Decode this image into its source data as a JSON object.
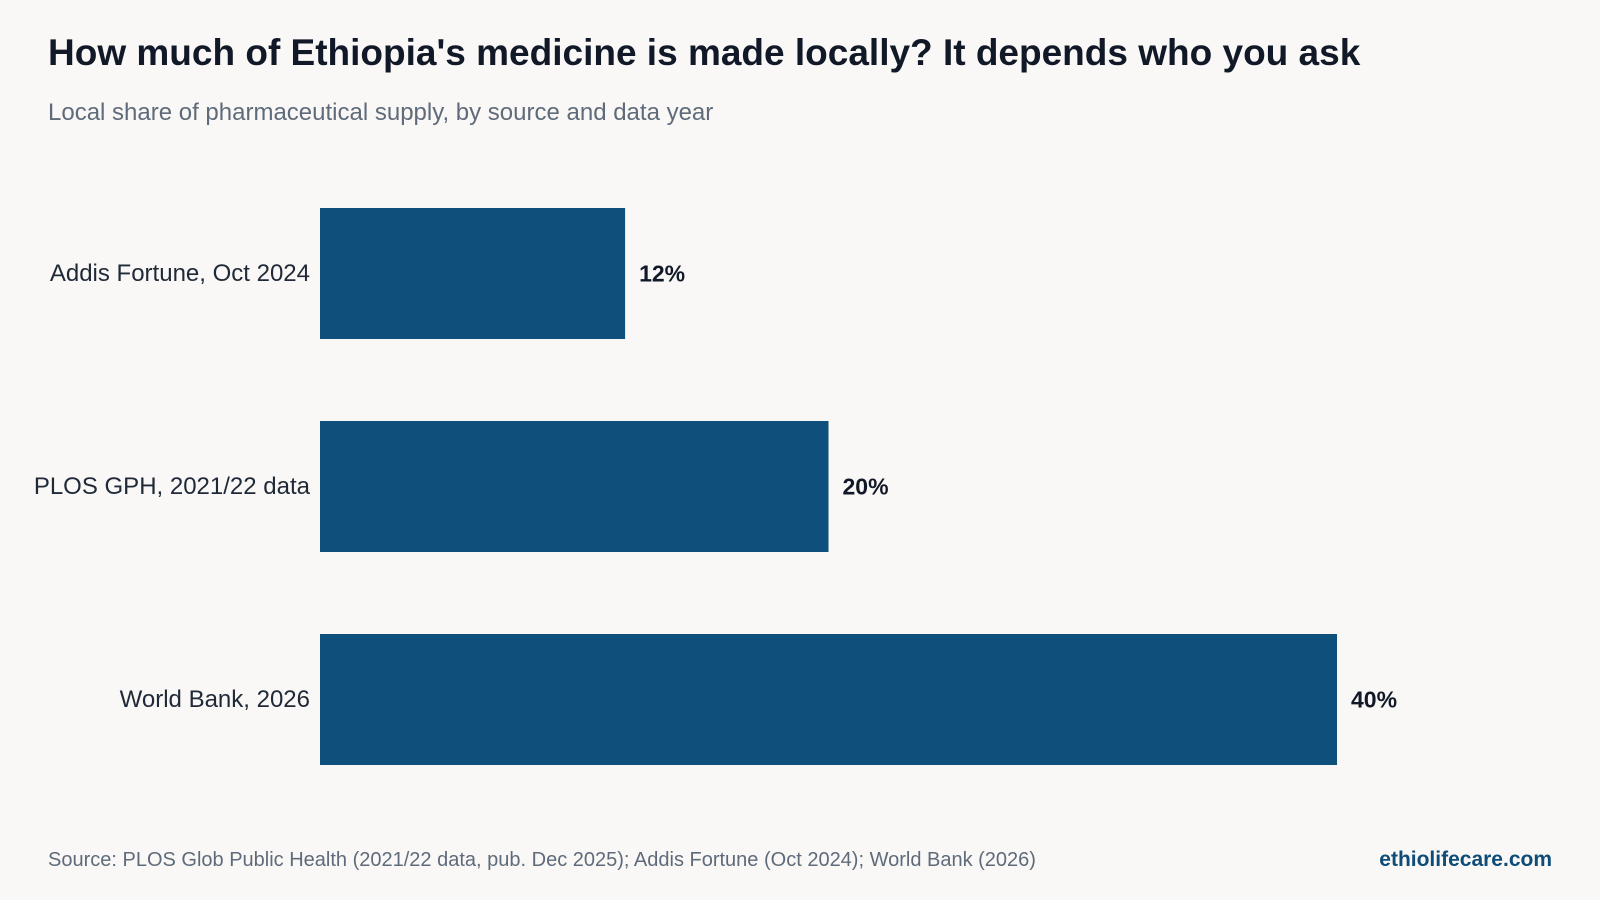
{
  "header": {
    "title": "How much of Ethiopia's medicine is made locally? It depends who you ask",
    "subtitle": "Local share of pharmaceutical supply, by source and data year"
  },
  "footer": {
    "source": "Source: PLOS Glob Public Health (2021/22 data, pub. Dec 2025); Addis Fortune (Oct 2024); World Bank (2026)",
    "brand": "ethiolifecare.com"
  },
  "colors": {
    "bar": "#0f4f7b",
    "label": "#1f2937",
    "value": "#111827",
    "brand": "#0f4c78"
  },
  "chart_data": {
    "type": "bar",
    "orientation": "horizontal",
    "categories": [
      "Addis Fortune, Oct 2024",
      "PLOS GPH, 2021/22 data",
      "World Bank, 2026"
    ],
    "values": [
      12,
      20,
      40
    ],
    "value_labels": [
      "12%",
      "20%",
      "40%"
    ],
    "unit": "%",
    "xlim": [
      0,
      40
    ],
    "grid": false,
    "legend": "none"
  }
}
